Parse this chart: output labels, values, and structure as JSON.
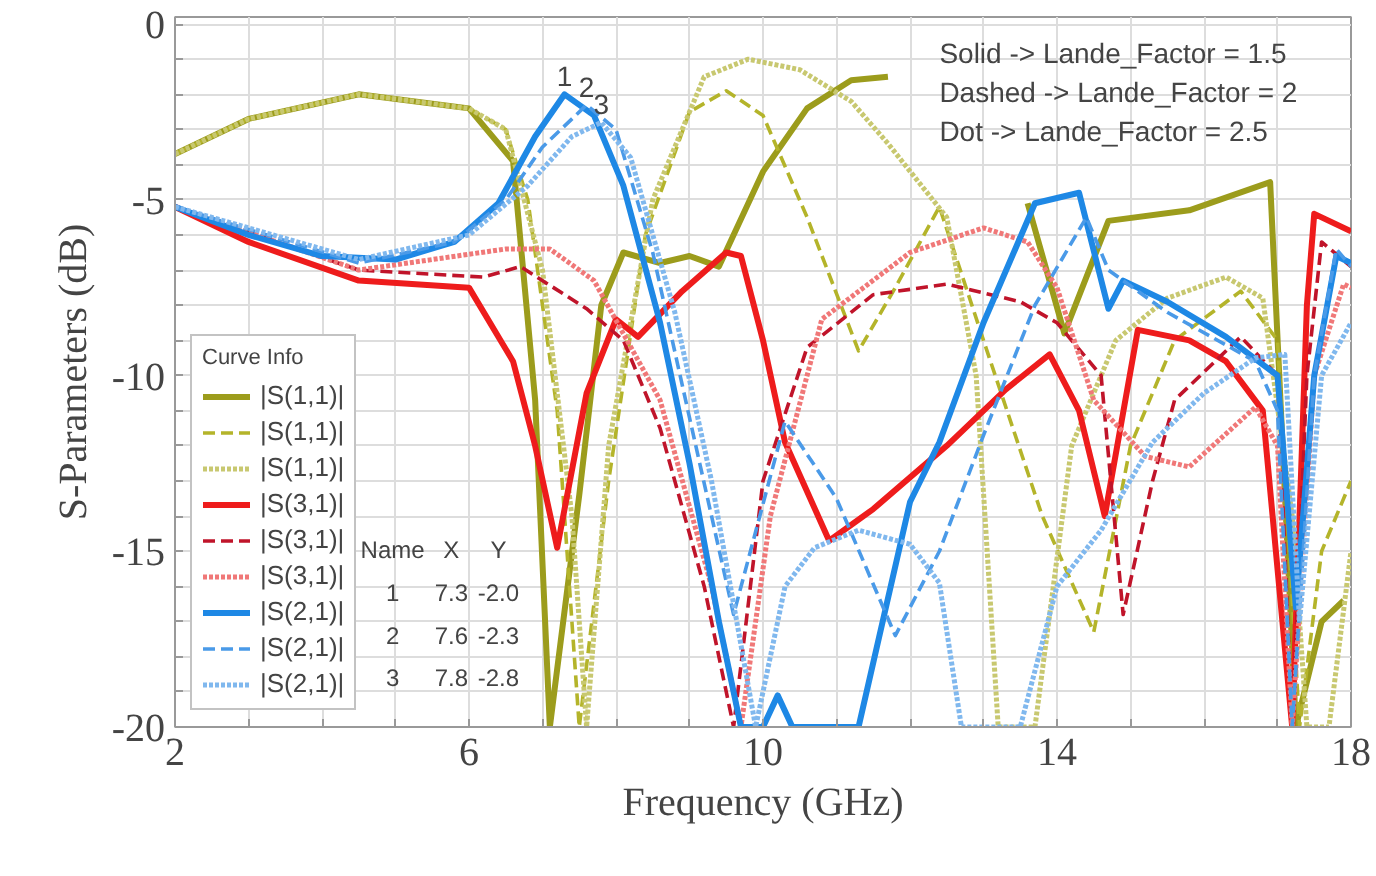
{
  "chart_data": {
    "type": "line",
    "xlabel": "Frequency (GHz)",
    "ylabel": "S-Parameters (dB)",
    "xlim": [
      2,
      18
    ],
    "ylim": [
      -20,
      0.2
    ],
    "xticks": [
      2,
      {
        "value": 3,
        "label": null
      },
      {
        "value": 4,
        "label": null
      },
      {
        "value": 5,
        "label": null
      },
      6,
      {
        "value": 7,
        "label": null
      },
      {
        "value": 8,
        "label": null
      },
      {
        "value": 9,
        "label": null
      },
      10,
      {
        "value": 11,
        "label": null
      },
      {
        "value": 12,
        "label": null
      },
      {
        "value": 13,
        "label": null
      },
      14,
      {
        "value": 15,
        "label": null
      },
      {
        "value": 16,
        "label": null
      },
      {
        "value": 17,
        "label": null
      },
      18
    ],
    "yticks": [
      -20,
      {
        "value": -19,
        "label": null
      },
      {
        "value": -18,
        "label": null
      },
      {
        "value": -17,
        "label": null
      },
      {
        "value": -16,
        "label": null
      },
      -15,
      {
        "value": -14,
        "label": null
      },
      {
        "value": -13,
        "label": null
      },
      {
        "value": -12,
        "label": null
      },
      {
        "value": -11,
        "label": null
      },
      -10,
      {
        "value": -9,
        "label": null
      },
      {
        "value": -8,
        "label": null
      },
      {
        "value": -7,
        "label": null
      },
      {
        "value": -6,
        "label": null
      },
      -5,
      {
        "value": -4,
        "label": null
      },
      {
        "value": -3,
        "label": null
      },
      {
        "value": -2,
        "label": null
      },
      {
        "value": -1,
        "label": null
      },
      0
    ],
    "grid": true,
    "legend": "bottom left",
    "legend_title": "Curve Info",
    "series": [
      {
        "name": "|S(1,1)|",
        "color": "#9c9c1c",
        "line_style": "solid",
        "x": [
          2,
          3,
          4.5,
          6.0,
          6.6,
          6.9,
          7.1,
          7.5,
          7.8,
          8.1,
          8.6,
          9.0,
          9.4,
          10.0,
          10.6,
          11.2,
          11.7,
          12.5,
          13.6,
          14.1,
          14.7,
          15.8,
          16.9,
          17.25,
          17.6,
          17.9
        ],
        "values": [
          -3.7,
          -2.7,
          -2.0,
          -2.4,
          -3.9,
          -10.7,
          -20,
          -13.4,
          -8.0,
          -6.5,
          -6.8,
          -6.6,
          -6.9,
          -4.2,
          -2.4,
          -1.6,
          -1.5,
          null,
          -5.1,
          -8.8,
          -5.6,
          -5.3,
          -4.5,
          -20,
          -17,
          -16.4
        ]
      },
      {
        "name": "|S(1,1)|",
        "color": "#b4b42a",
        "line_style": "dashed",
        "x": [
          2,
          3,
          4.5,
          6.0,
          6.5,
          6.8,
          7.2,
          7.5,
          7.9,
          8.4,
          9.0,
          9.5,
          10.0,
          10.6,
          11.3,
          11.8,
          12.4,
          13.0,
          13.8,
          14.5,
          15.0,
          15.6,
          16.5,
          17.0,
          17.3,
          17.6,
          18
        ],
        "values": [
          -3.7,
          -2.7,
          -2.0,
          -2.4,
          -3.0,
          -5.0,
          -11,
          -20,
          -13,
          -6.0,
          -2.5,
          -1.9,
          -2.6,
          -5.5,
          -9.3,
          -7.5,
          -5.2,
          -9.0,
          -14,
          -17.3,
          -12,
          -9.0,
          -7.6,
          -9.0,
          -20,
          -15,
          -13
        ]
      },
      {
        "name": "|S(1,1)|",
        "color": "#c8c870",
        "line_style": "dotted",
        "x": [
          2,
          3,
          4.5,
          6.0,
          6.5,
          7.0,
          7.4,
          7.6,
          7.9,
          8.5,
          9.2,
          9.8,
          10.5,
          11.2,
          11.7,
          12.5,
          12.9,
          13.2,
          13.7,
          14.2,
          14.8,
          15.5,
          16.3,
          16.8,
          17.2,
          17.4,
          17.7,
          18
        ],
        "values": [
          -3.7,
          -2.7,
          -2.0,
          -2.4,
          -3.0,
          -7.0,
          -14,
          -20,
          -12,
          -5.0,
          -1.5,
          -1.0,
          -1.3,
          -2.2,
          -3.4,
          -5.5,
          -10,
          -20,
          -20,
          -12,
          -9.0,
          -7.8,
          -7.2,
          -7.8,
          -14,
          -20,
          -20,
          -15
        ]
      },
      {
        "name": "|S(3,1)|",
        "color": "#ee1c1c",
        "line_style": "solid",
        "x": [
          2,
          3,
          4.5,
          6.0,
          6.6,
          6.9,
          7.2,
          7.6,
          8.0,
          8.3,
          8.9,
          9.5,
          9.7,
          10.0,
          10.3,
          10.9,
          11.5,
          12.5,
          13.3,
          13.9,
          14.3,
          14.65,
          15.1,
          15.8,
          16.3,
          16.8,
          17.2,
          17.4,
          17.5,
          18
        ],
        "values": [
          -5.2,
          -6.2,
          -7.3,
          -7.5,
          -9.6,
          -12,
          -14.9,
          -10.5,
          -8.4,
          -8.9,
          -7.6,
          -6.5,
          -6.6,
          -9.0,
          -11.9,
          -14.7,
          -13.8,
          -12,
          -10.4,
          -9.4,
          -11,
          -14,
          -8.7,
          -9.0,
          -9.6,
          -11,
          -20,
          -8.0,
          -5.4,
          -5.9
        ]
      },
      {
        "name": "|S(3,1)|",
        "color": "#c0142a",
        "line_style": "dashed",
        "x": [
          2,
          4.5,
          6.2,
          6.7,
          7.6,
          8.1,
          8.6,
          9.2,
          9.6,
          10.0,
          10.6,
          11.5,
          12.5,
          13.5,
          14.0,
          14.6,
          14.9,
          15.3,
          15.6,
          16.5,
          17.0,
          17.2,
          17.4,
          17.6,
          18
        ],
        "values": [
          -5.2,
          -7.0,
          -7.2,
          -6.9,
          -8.1,
          -9.0,
          -11.5,
          -16,
          -20,
          -13,
          -9.2,
          -7.7,
          -7.4,
          -7.9,
          -8.5,
          -10,
          -16.8,
          -13,
          -10.7,
          -8.9,
          -10,
          -20,
          -10,
          -6.2,
          -6.9
        ]
      },
      {
        "name": "|S(3,1)|",
        "color": "#f07878",
        "line_style": "dotted",
        "x": [
          2,
          4.5,
          6.5,
          7.1,
          7.7,
          8.6,
          9.3,
          9.7,
          10.1,
          10.8,
          12.0,
          13.0,
          13.6,
          14.0,
          14.5,
          15.2,
          15.8,
          16.7,
          17.0,
          17.2,
          17.5,
          17.9,
          18
        ],
        "values": [
          -5.2,
          -7.0,
          -6.4,
          -6.4,
          -7.3,
          -10.7,
          -16,
          -20,
          -14,
          -8.4,
          -6.5,
          -5.8,
          -6.2,
          -7.5,
          -10.7,
          -12.3,
          -12.6,
          -10.9,
          -12,
          -20,
          -10,
          -7.4,
          -7.5
        ]
      },
      {
        "name": "|S(2,1)|",
        "color": "#1e88e5",
        "line_style": "solid",
        "x": [
          2,
          3,
          4,
          5,
          5.8,
          6.4,
          6.9,
          7.3,
          7.7,
          8.1,
          8.6,
          9.0,
          9.4,
          9.7,
          10.0,
          10.2,
          10.4,
          11.3,
          12.0,
          12.4,
          13.0,
          13.7,
          14.3,
          14.7,
          14.9,
          15.5,
          16.3,
          17.0,
          17.25,
          17.5,
          17.8,
          18
        ],
        "values": [
          -5.2,
          -6.0,
          -6.6,
          -6.7,
          -6.2,
          -5.1,
          -3.2,
          -2.0,
          -2.6,
          -4.6,
          -8.5,
          -12.5,
          -17,
          -20,
          -20,
          -19.1,
          -20,
          -20,
          -13.6,
          -11.9,
          -8.5,
          -5.1,
          -4.8,
          -8.1,
          -7.3,
          -7.9,
          -8.9,
          -10,
          -16.6,
          -10,
          -6.6,
          -6.8
        ]
      },
      {
        "name": "|S(2,1)|",
        "color": "#4a9ae8",
        "line_style": "dashed",
        "x": [
          2,
          4.5,
          5.8,
          6.5,
          7.0,
          7.6,
          8.0,
          8.5,
          9.0,
          9.6,
          10.3,
          11.0,
          11.8,
          12.4,
          13.0,
          13.7,
          14.4,
          14.7,
          15.5,
          16.7,
          17.0,
          17.2,
          17.5,
          17.8,
          18
        ],
        "values": [
          -5.2,
          -6.8,
          -6.2,
          -5.0,
          -3.5,
          -2.3,
          -3.0,
          -6.5,
          -11.2,
          -16.8,
          -11.3,
          -13.5,
          -17.4,
          -15,
          -11.7,
          -8.0,
          -5.5,
          -7.0,
          -8.2,
          -9.6,
          -11,
          -20,
          -10,
          -6.4,
          -6.9
        ]
      },
      {
        "name": "|S(2,1)|",
        "color": "#80b8ee",
        "line_style": "dotted",
        "x": [
          2,
          4.5,
          6.0,
          6.8,
          7.4,
          7.8,
          8.2,
          8.8,
          9.3,
          9.9,
          10.3,
          10.7,
          11.3,
          12.0,
          12.4,
          12.7,
          13.5,
          14.0,
          14.6,
          15.3,
          16.0,
          16.7,
          17.1,
          17.3,
          17.6,
          18
        ],
        "values": [
          -5.2,
          -6.7,
          -6.0,
          -4.6,
          -3.2,
          -2.8,
          -3.8,
          -8.2,
          -13,
          -20,
          -16,
          -14.9,
          -14.4,
          -14.8,
          -15.9,
          -20,
          -20,
          -16,
          -14.4,
          -11.9,
          -10.5,
          -9.5,
          -9.4,
          -17,
          -10,
          -8.5
        ]
      }
    ],
    "annotations": [
      "Solid -> Lande_Factor = 1.5",
      "Dashed -> Lande_Factor = 2",
      "Dot -> Lande_Factor = 2.5",
      "Name X Y",
      "1 7.3 -2.0",
      "2 7.6 -2.3",
      "3 7.8 -2.8",
      {
        "text": "1",
        "x": 7.3,
        "y": -2.0
      },
      {
        "text": "2",
        "x": 7.6,
        "y": -2.3
      },
      {
        "text": "3",
        "x": 7.8,
        "y": -2.8
      }
    ]
  }
}
